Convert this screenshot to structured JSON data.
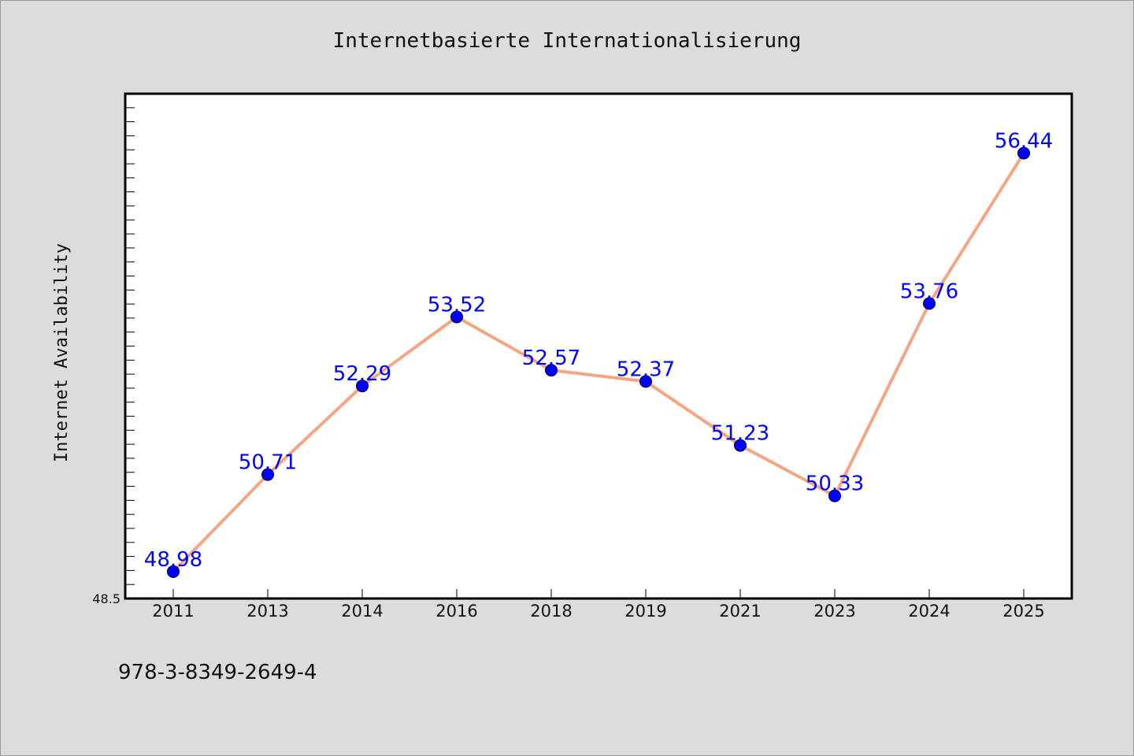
{
  "chart_data": {
    "type": "line",
    "title": "Internetbasierte Internationalisierung",
    "xlabel": "",
    "ylabel": "Internet Availability",
    "categories": [
      "2011",
      "2013",
      "2014",
      "2016",
      "2018",
      "2019",
      "2021",
      "2023",
      "2024",
      "2025"
    ],
    "values": [
      48.98,
      50.71,
      52.29,
      53.52,
      52.57,
      52.37,
      51.23,
      50.33,
      53.76,
      56.44
    ],
    "data_labels": [
      "48.98",
      "50.71",
      "52.29",
      "53.52",
      "52.57",
      "52.37",
      "51.23",
      "50.33",
      "53.76",
      "56.44"
    ],
    "ylim": [
      48.5,
      57.5
    ],
    "yticks_labeled": [
      "48.5"
    ],
    "grid": false,
    "legend": "none",
    "line_color": "#f4a582",
    "marker_color": "#0000ff",
    "label_color": "#0000ff"
  },
  "footer_text": "978-3-8349-2649-4"
}
